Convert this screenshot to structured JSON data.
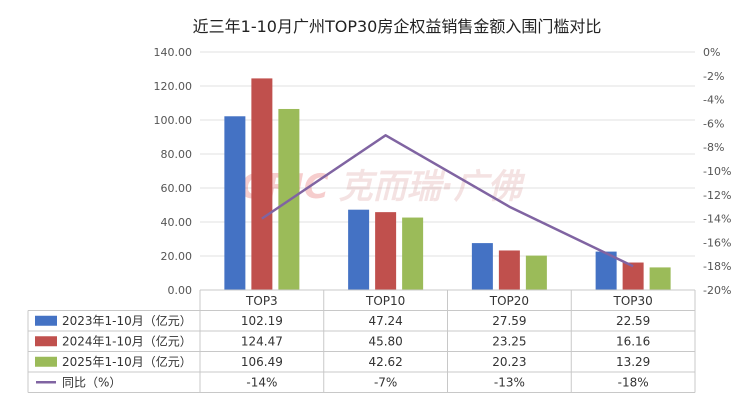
{
  "chart_data": {
    "type": "bar",
    "title": "近三年1-10月广州TOP30房企权益销售金额入围门槛对比",
    "categories": [
      "TOP3",
      "TOP10",
      "TOP20",
      "TOP30"
    ],
    "series": [
      {
        "name": "2023年1-10月（亿元）",
        "type": "bar",
        "axis": "left",
        "color": "#4472C4",
        "values": [
          102.19,
          47.24,
          27.59,
          22.59
        ],
        "labels": [
          "102.19",
          "47.24",
          "27.59",
          "22.59"
        ]
      },
      {
        "name": "2024年1-10月（亿元）",
        "type": "bar",
        "axis": "left",
        "color": "#C0504D",
        "values": [
          124.47,
          45.8,
          23.25,
          16.16
        ],
        "labels": [
          "124.47",
          "45.80",
          "23.25",
          "16.16"
        ]
      },
      {
        "name": "2025年1-10月（亿元）",
        "type": "bar",
        "axis": "left",
        "color": "#9BBB59",
        "values": [
          106.49,
          42.62,
          20.23,
          13.29
        ],
        "labels": [
          "106.49",
          "42.62",
          "20.23",
          "13.29"
        ]
      },
      {
        "name": "同比（%）",
        "type": "line",
        "axis": "right",
        "color": "#8064A2",
        "values": [
          -14,
          -7,
          -13,
          -18
        ],
        "labels": [
          "-14%",
          "-7%",
          "-13%",
          "-18%"
        ]
      }
    ],
    "left_axis": {
      "min": 0,
      "max": 140,
      "ticks": [
        "0.00",
        "20.00",
        "40.00",
        "60.00",
        "80.00",
        "100.00",
        "120.00",
        "140.00"
      ]
    },
    "right_axis": {
      "min": -20,
      "max": 0,
      "ticks": [
        "0%",
        "-2%",
        "-4%",
        "-6%",
        "-8%",
        "-10%",
        "-12%",
        "-14%",
        "-16%",
        "-18%",
        "-20%"
      ]
    },
    "grid": true,
    "legend": "data-table",
    "watermark": "CRIC 克而瑞·广佛"
  }
}
